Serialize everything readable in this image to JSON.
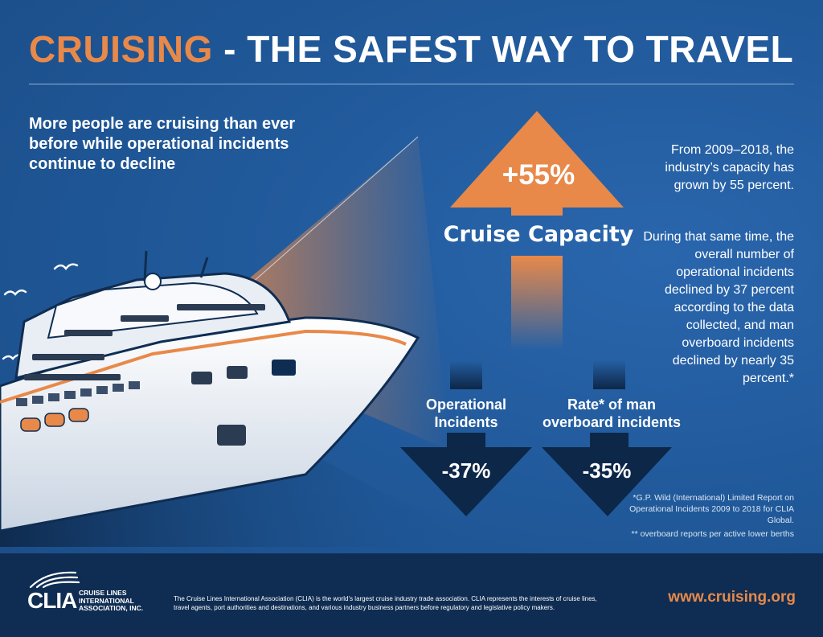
{
  "header": {
    "title_accent": "CRUISING",
    "title_rest": " - THE SAFEST WAY TO TRAVEL"
  },
  "intro": "More people are cruising than ever before while operational incidents continue to decline",
  "capacity": {
    "value": "+55%",
    "label": "Cruise Capacity"
  },
  "operational": {
    "label": "Operational Incidents",
    "value": "-37%"
  },
  "man_overboard": {
    "label": "Rate* of man overboard incidents",
    "value": "-35%"
  },
  "side_text": {
    "p1": "From 2009–2018, the industry’s capacity has grown by 55 percent.",
    "p2": "During that same time, the overall number of operational incidents declined by 37 percent according to the data collected, and man overboard incidents declined by nearly 35 percent.*"
  },
  "footnotes": {
    "source": "*G.P. Wild (International) Limited Report on Operational Incidents 2009 to 2018 for CLIA Global.",
    "rate_note": "** overboard reports per active lower berths"
  },
  "footer": {
    "logo_word": "CLIA",
    "logo_name": "CRUISE LINES INTERNATIONAL ASSOCIATION, INC.",
    "description": "The Cruise Lines International Association (CLIA) is the world’s largest cruise industry trade association. CLIA represents the interests of cruise lines, travel agents, port authorities and destinations, and various industry business partners before regulatory and legislative policy makers.",
    "url": "www.cruising.org"
  },
  "colors": {
    "accent_orange": "#e8894a",
    "background_blue": "#1f5797",
    "dark_navy": "#0f2d52"
  }
}
